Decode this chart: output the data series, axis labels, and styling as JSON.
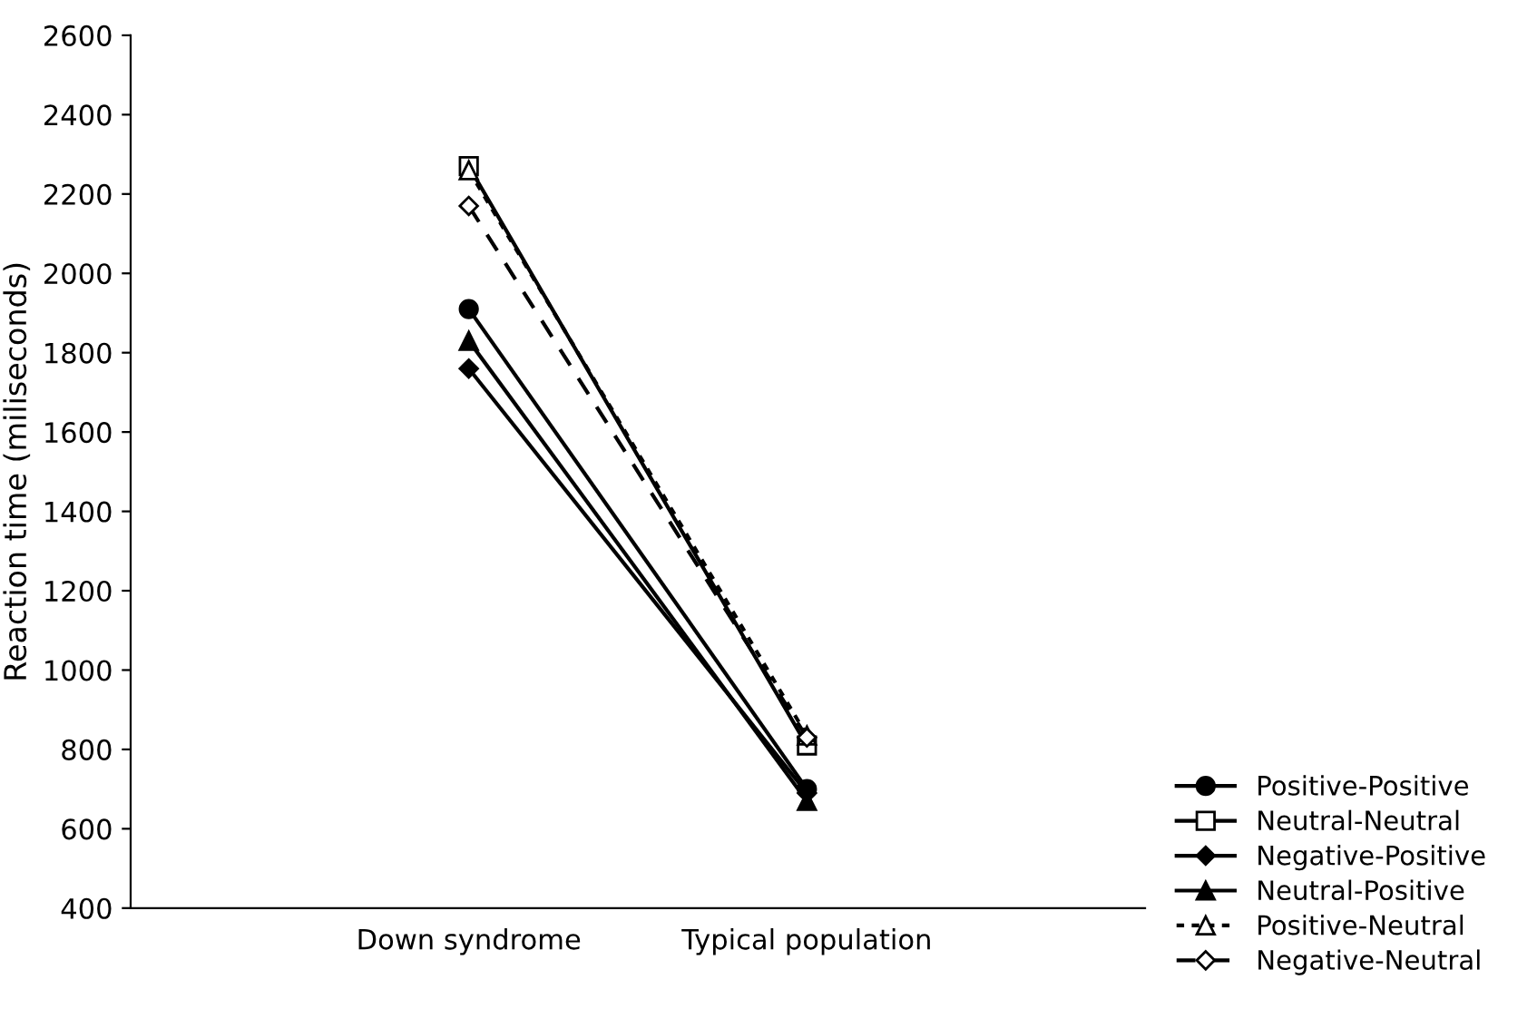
{
  "chart_data": {
    "type": "line",
    "ylabel": "Reaction time (miliseconds)",
    "categories": [
      "Down syndrome",
      "Typical population"
    ],
    "ylim": [
      400,
      2600
    ],
    "yticks": [
      400,
      600,
      800,
      1000,
      1200,
      1400,
      1600,
      1800,
      2000,
      2200,
      2400,
      2600
    ],
    "grid": false,
    "legend": "bottom right",
    "series": [
      {
        "name": "Positive-Positive",
        "color": "#000000",
        "values": [
          1910,
          700
        ],
        "marker": "circle",
        "line_style": "solid"
      },
      {
        "name": "Neutral-Neutral",
        "color": "#000000",
        "values": [
          2270,
          810
        ],
        "marker": "square",
        "line_style": "solid"
      },
      {
        "name": "Negative-Positive",
        "color": "#000000",
        "values": [
          1760,
          690
        ],
        "marker": "diamond",
        "line_style": "solid"
      },
      {
        "name": "Neutral-Positive",
        "color": "#000000",
        "values": [
          1830,
          670
        ],
        "marker": "triangle",
        "line_style": "solid"
      },
      {
        "name": "Positive-Neutral",
        "color": "#000000",
        "values": [
          2260,
          835
        ],
        "marker": "triangle",
        "line_style": "dotted"
      },
      {
        "name": "Negative-Neutral",
        "color": "#000000",
        "values": [
          2170,
          830
        ],
        "marker": "diamond",
        "line_style": "dashed"
      }
    ]
  }
}
